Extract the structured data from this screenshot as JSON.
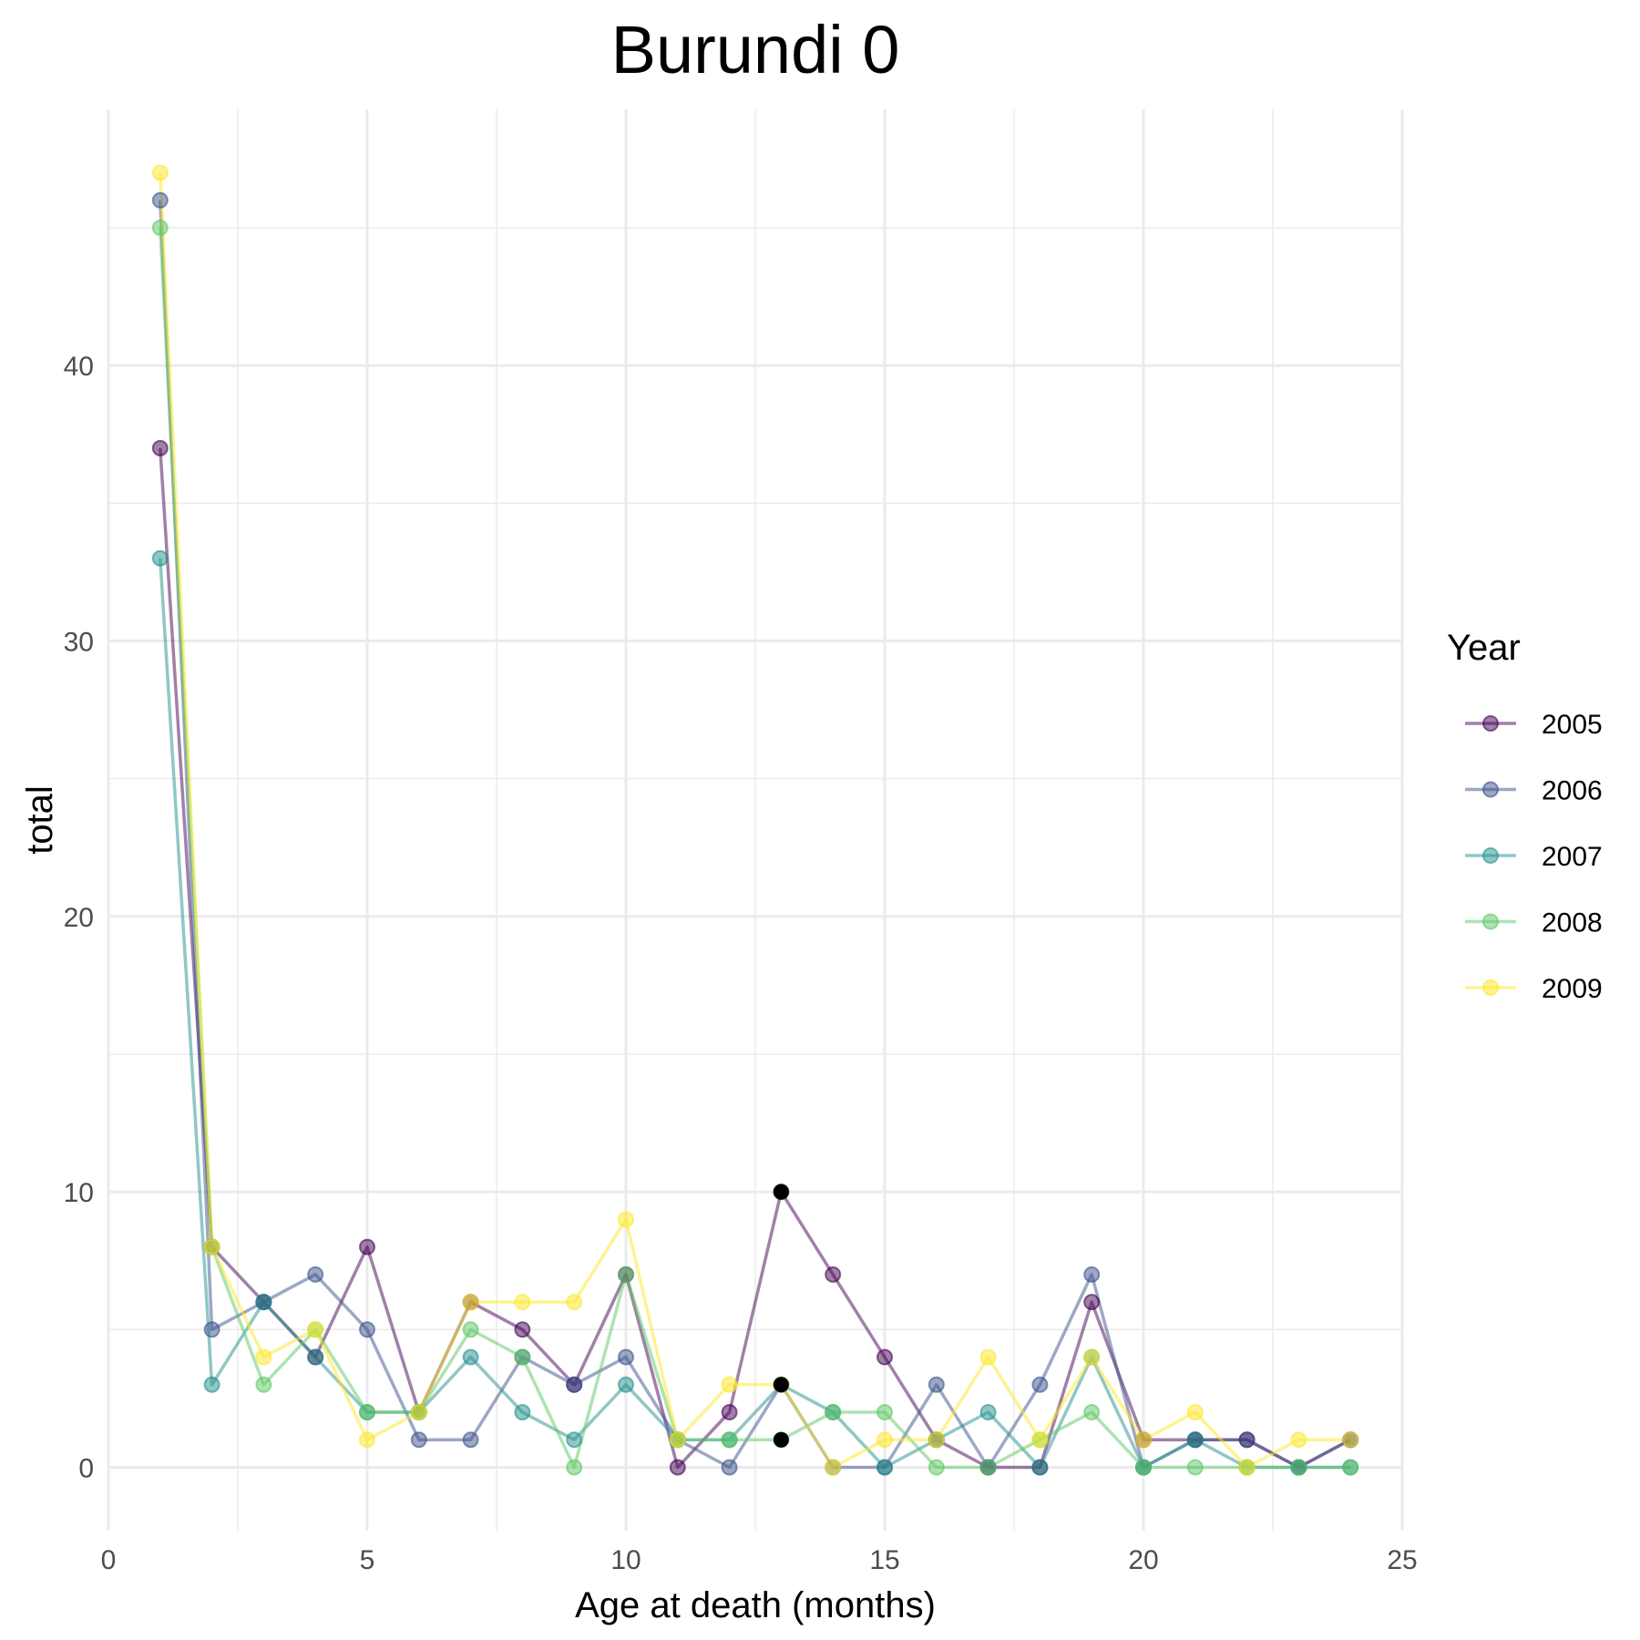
{
  "chart_data": {
    "type": "line",
    "title": "Burundi 0",
    "xlabel": "Age at death (months)",
    "ylabel": "total",
    "xlim": [
      0,
      25
    ],
    "ylim": [
      -2.3,
      49.3
    ],
    "x_ticks": [
      "0",
      "5",
      "10",
      "15",
      "20",
      "25"
    ],
    "y_ticks": [
      "0",
      "10",
      "20",
      "30",
      "40"
    ],
    "x_tick_values": [
      0,
      5,
      10,
      15,
      20,
      25
    ],
    "y_tick_values": [
      0,
      10,
      20,
      30,
      40
    ],
    "grid": true,
    "legend_title": "Year",
    "legend_position": "right",
    "x": [
      1,
      2,
      3,
      4,
      5,
      6,
      7,
      8,
      9,
      10,
      11,
      12,
      13,
      14,
      15,
      16,
      17,
      18,
      19,
      20,
      21,
      22,
      23,
      24
    ],
    "series": [
      {
        "name": "2005",
        "color": "#440154",
        "values": [
          37,
          8,
          6,
          4,
          8,
          2,
          6,
          5,
          3,
          7,
          0,
          2,
          10,
          7,
          4,
          1,
          0,
          0,
          6,
          1,
          1,
          1,
          0,
          1
        ]
      },
      {
        "name": "2006",
        "color": "#3B528B",
        "values": [
          46,
          5,
          6,
          7,
          5,
          1,
          1,
          4,
          3,
          4,
          1,
          0,
          3,
          0,
          0,
          3,
          0,
          3,
          7,
          0,
          1,
          1,
          0,
          1
        ]
      },
      {
        "name": "2007",
        "color": "#21908C",
        "values": [
          33,
          3,
          6,
          4,
          2,
          2,
          4,
          2,
          1,
          3,
          1,
          1,
          3,
          2,
          0,
          1,
          2,
          0,
          4,
          0,
          1,
          0,
          0,
          0
        ]
      },
      {
        "name": "2008",
        "color": "#5DC863",
        "values": [
          45,
          8,
          3,
          5,
          2,
          2,
          5,
          4,
          0,
          7,
          1,
          1,
          1,
          2,
          2,
          0,
          0,
          1,
          2,
          0,
          0,
          0,
          0,
          0
        ]
      },
      {
        "name": "2009",
        "color": "#FDE725",
        "values": [
          47,
          8,
          4,
          5,
          1,
          2,
          6,
          6,
          6,
          9,
          1,
          3,
          3,
          0,
          1,
          1,
          4,
          1,
          4,
          1,
          2,
          0,
          1,
          1
        ]
      }
    ],
    "highlight_points": [
      {
        "x": 13,
        "y": 10,
        "color": "#000000"
      },
      {
        "x": 13,
        "y": 3,
        "color": "#000000"
      },
      {
        "x": 13,
        "y": 1,
        "color": "#000000"
      }
    ]
  }
}
